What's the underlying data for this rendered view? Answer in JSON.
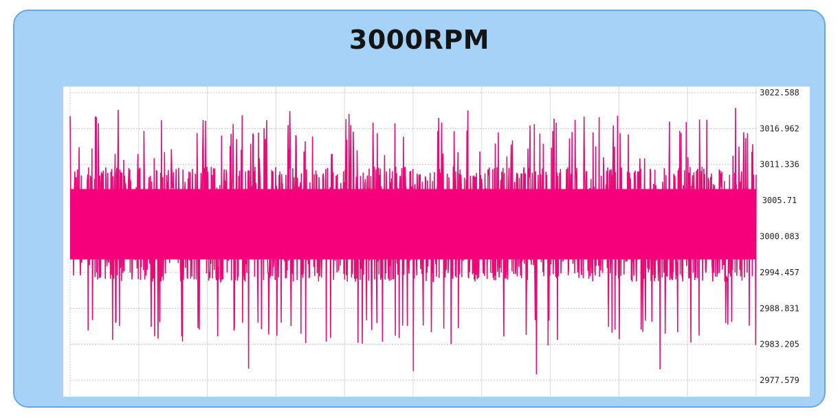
{
  "title": "3000RPM",
  "colors": {
    "card_background": "#a7d2f8",
    "card_border": "#6aa7e0",
    "signal_dense": "#f5007a",
    "signal_spikes": "#c2336e",
    "grid": "#c8c8c8"
  },
  "chart_data": {
    "type": "line",
    "title": "3000RPM",
    "xlabel": "",
    "ylabel": "",
    "x_tick_labels": false,
    "ylim": [
      2977.579,
      3022.588
    ],
    "y_ticks": [
      "3022.588",
      "3016.962",
      "3011.336",
      "3005.71",
      "3000.083",
      "2994.457",
      "2988.831",
      "2983.205",
      "2977.579"
    ],
    "grid": true,
    "legend": "none",
    "series": [
      {
        "mean": 3002.0,
        "core_band": [
          2993.0,
          3011.0
        ],
        "typical_peak_range": [
          3012.0,
          3019.5
        ],
        "typical_trough_range": [
          2987.0,
          2991.0
        ],
        "max": 3020.2,
        "min": 2978.5
      }
    ]
  }
}
